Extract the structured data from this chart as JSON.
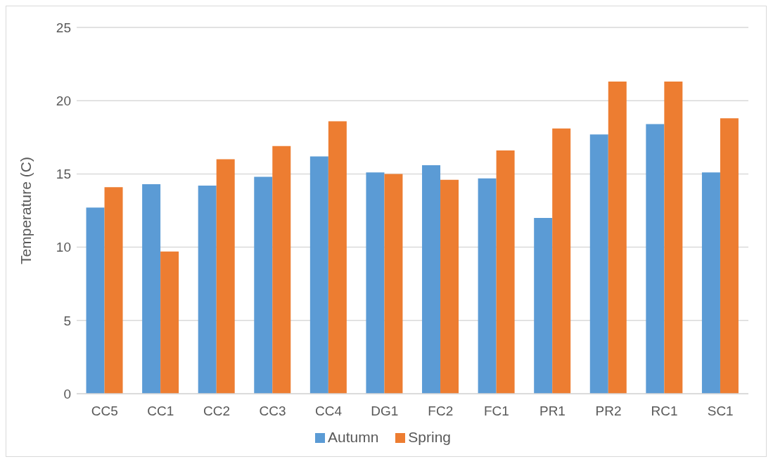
{
  "chart_data": {
    "type": "bar",
    "ylabel": "Temperature (C)",
    "categories": [
      "CC5",
      "CC1",
      "CC2",
      "CC3",
      "CC4",
      "DG1",
      "FC2",
      "FC1",
      "PR1",
      "PR2",
      "RC1",
      "SC1"
    ],
    "series": [
      {
        "name": "Autumn",
        "color": "#5b9bd5",
        "values": [
          12.7,
          14.3,
          14.2,
          14.8,
          16.2,
          15.1,
          15.6,
          14.7,
          12.0,
          17.7,
          18.4,
          15.1
        ]
      },
      {
        "name": "Spring",
        "color": "#ed7d31",
        "values": [
          14.1,
          9.7,
          16.0,
          16.9,
          18.6,
          15.0,
          14.6,
          16.6,
          18.1,
          21.3,
          21.3,
          18.8
        ]
      }
    ],
    "ylim": [
      0,
      25
    ],
    "yticks": [
      0,
      5,
      10,
      15,
      20,
      25
    ],
    "grid": "y",
    "legend": "bottom"
  }
}
